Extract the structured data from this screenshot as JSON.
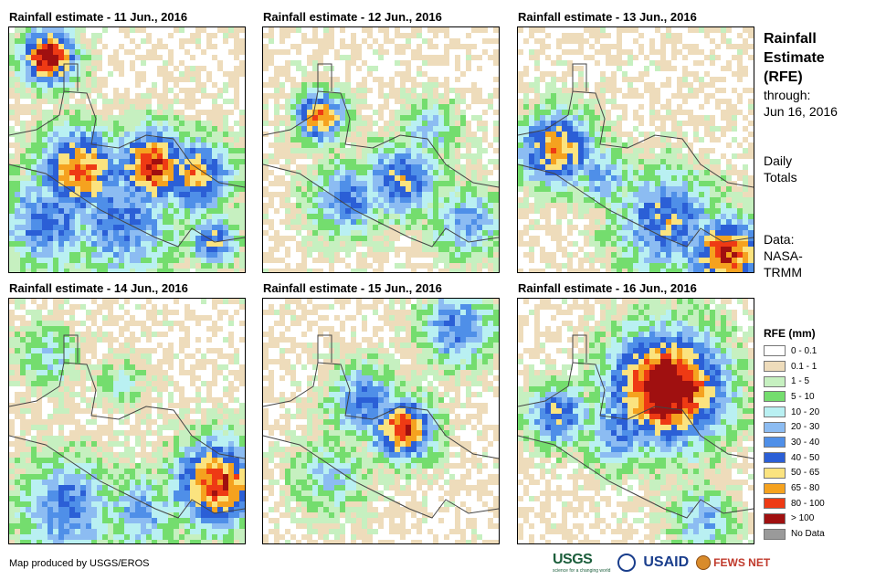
{
  "panels": [
    {
      "title": "Rainfall estimate - 11 Jun., 2016"
    },
    {
      "title": "Rainfall estimate - 12 Jun., 2016"
    },
    {
      "title": "Rainfall estimate - 13 Jun., 2016"
    },
    {
      "title": "Rainfall estimate - 14 Jun., 2016"
    },
    {
      "title": "Rainfall estimate - 15 Jun., 2016"
    },
    {
      "title": "Rainfall estimate - 16 Jun., 2016"
    }
  ],
  "side": {
    "title_lines": [
      "Rainfall",
      "Estimate",
      "(RFE)"
    ],
    "through_label": "through:",
    "through_date": "Jun 16, 2016",
    "totals_lines": [
      "Daily",
      "Totals"
    ],
    "data_lines": [
      "Data:",
      "NASA-",
      "TRMM"
    ]
  },
  "legend": {
    "title": "RFE (mm)",
    "items": [
      {
        "label": "0 - 0.1",
        "color": "#ffffff"
      },
      {
        "label": "0.1 - 1",
        "color": "#eedcbb"
      },
      {
        "label": "1 - 5",
        "color": "#c6f0c0"
      },
      {
        "label": "5 - 10",
        "color": "#74dd6e"
      },
      {
        "label": "10 - 20",
        "color": "#b9f0f2"
      },
      {
        "label": "20 - 30",
        "color": "#8cbcf2"
      },
      {
        "label": "30 - 40",
        "color": "#4f8fe8"
      },
      {
        "label": "40 - 50",
        "color": "#2b5fd6"
      },
      {
        "label": "50 - 65",
        "color": "#fbe37f"
      },
      {
        "label": "65 - 80",
        "color": "#f5a21f"
      },
      {
        "label": "80 - 100",
        "color": "#ee3a14"
      },
      {
        "label": "> 100",
        "color": "#a01010"
      },
      {
        "label": "No Data",
        "color": "#9a9a9a"
      }
    ]
  },
  "credit": "Map produced by USGS/EROS",
  "logos": {
    "usgs": "USGS",
    "usgs_tagline": "science for a changing world",
    "usaid": "USAID",
    "fews": "FEWS NET"
  }
}
